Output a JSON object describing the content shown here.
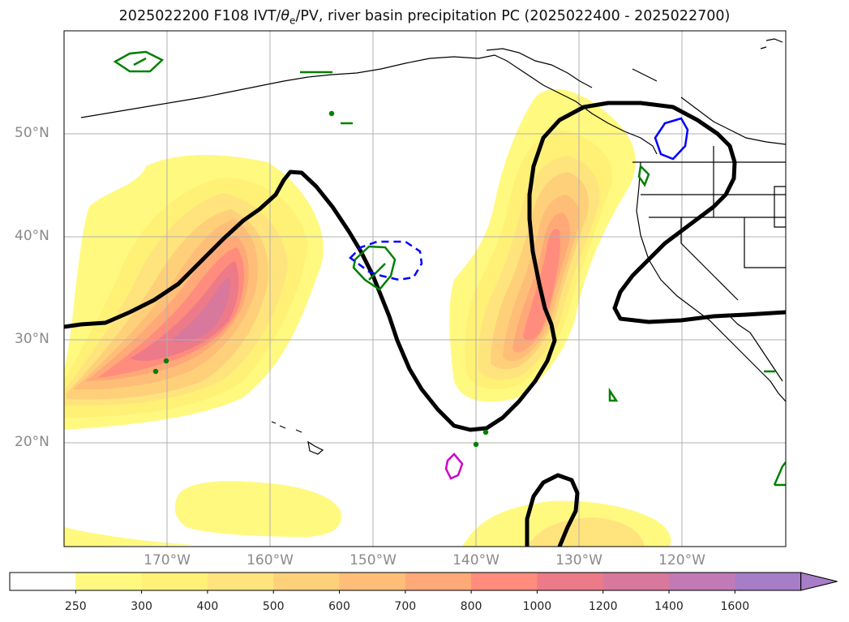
{
  "title": {
    "prefix": "2025022200 F108 IVT/",
    "theta": "θ",
    "sub": "e",
    "suffix": "/PV, river basin precipitation PC (2025022400 - 2025022700)"
  },
  "map": {
    "lat_labels": [
      "50°N",
      "40°N",
      "30°N",
      "20°N"
    ],
    "lon_labels": [
      "170°W",
      "160°W",
      "150°W",
      "140°W",
      "130°W",
      "120°W"
    ]
  },
  "colorbar": {
    "levels": [
      "250",
      "300",
      "400",
      "500",
      "600",
      "700",
      "800",
      "1000",
      "1200",
      "1400",
      "1600"
    ],
    "colors": [
      "#ffffff",
      "#fff980",
      "#fff176",
      "#ffe47d",
      "#ffd07a",
      "#ffbe78",
      "#ffa878",
      "#ff8c7c",
      "#ec7a88",
      "#d8789c",
      "#c17ab5",
      "#a77dc8"
    ]
  },
  "legend_colors": {
    "pv_contour": "#000000",
    "precip_pc": "#008000",
    "theta_e_contour": "#0000ff",
    "magenta_contour": "#cc00cc"
  }
}
